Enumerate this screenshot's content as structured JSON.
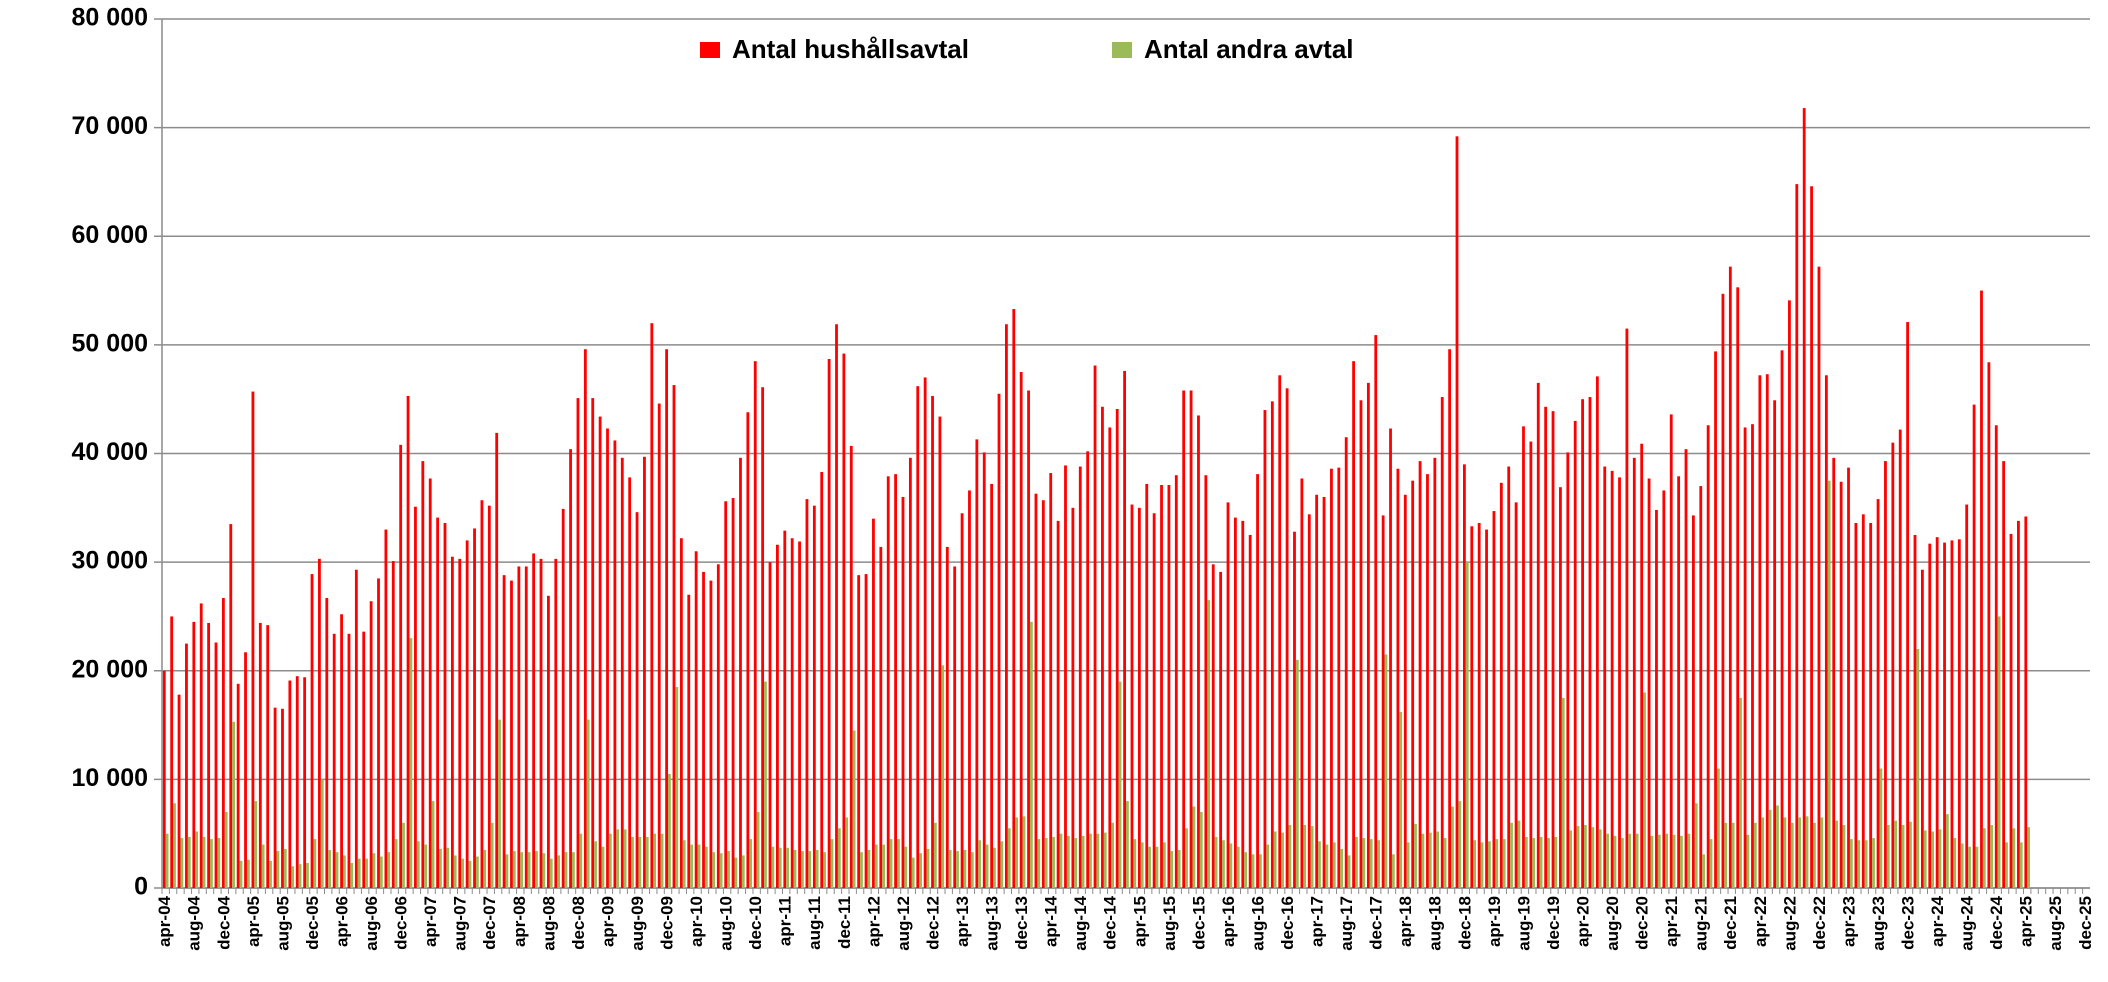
{
  "chart_data": {
    "type": "bar",
    "categories": [
      "apr-04",
      null,
      null,
      null,
      "aug-04",
      null,
      null,
      null,
      "dec-04",
      null,
      null,
      null,
      "apr-05",
      null,
      null,
      null,
      "aug-05",
      null,
      null,
      null,
      "dec-05",
      null,
      null,
      null,
      "apr-06",
      null,
      null,
      null,
      "aug-06",
      null,
      null,
      null,
      "dec-06",
      null,
      null,
      null,
      "apr-07",
      null,
      null,
      null,
      "aug-07",
      null,
      null,
      null,
      "dec-07",
      null,
      null,
      null,
      "apr-08",
      null,
      null,
      null,
      "aug-08",
      null,
      null,
      null,
      "dec-08",
      null,
      null,
      null,
      "apr-09",
      null,
      null,
      null,
      "aug-09",
      null,
      null,
      null,
      "dec-09",
      null,
      null,
      null,
      "apr-10",
      null,
      null,
      null,
      "aug-10",
      null,
      null,
      null,
      "dec-10",
      null,
      null,
      null,
      "apr-11",
      null,
      null,
      null,
      "aug-11",
      null,
      null,
      null,
      "dec-11",
      null,
      null,
      null,
      "apr-12",
      null,
      null,
      null,
      "aug-12",
      null,
      null,
      null,
      "dec-12",
      null,
      null,
      null,
      "apr-13",
      null,
      null,
      null,
      "aug-13",
      null,
      null,
      null,
      "dec-13",
      null,
      null,
      null,
      "apr-14",
      null,
      null,
      null,
      "aug-14",
      null,
      null,
      null,
      "dec-14",
      null,
      null,
      null,
      "apr-15",
      null,
      null,
      null,
      "aug-15",
      null,
      null,
      null,
      "dec-15",
      null,
      null,
      null,
      "apr-16",
      null,
      null,
      null,
      "aug-16",
      null,
      null,
      null,
      "dec-16",
      null,
      null,
      null,
      "apr-17",
      null,
      null,
      null,
      "aug-17",
      null,
      null,
      null,
      "dec-17",
      null,
      null,
      null,
      "apr-18",
      null,
      null,
      null,
      "aug-18",
      null,
      null,
      null,
      "dec-18",
      null,
      null,
      null,
      "apr-19",
      null,
      null,
      null,
      "aug-19",
      null,
      null,
      null,
      "dec-19",
      null,
      null,
      null,
      "apr-20",
      null,
      null,
      null,
      "aug-20",
      null,
      null,
      null,
      "dec-20",
      null,
      null,
      null,
      "apr-21",
      null,
      null,
      null,
      "aug-21",
      null,
      null,
      null,
      "dec-21",
      null,
      null,
      null,
      "apr-22",
      null,
      null,
      null,
      "aug-22",
      null,
      null,
      null,
      "dec-22",
      null,
      null,
      null,
      "apr-23",
      null,
      null,
      null,
      "aug-23",
      null,
      null,
      null,
      "dec-23",
      null,
      null,
      null,
      "apr-24",
      null,
      null,
      null,
      "aug-24",
      null,
      null,
      null,
      "dec-24",
      null,
      null,
      null,
      "apr-25",
      null,
      null,
      null,
      "aug-25",
      null,
      null,
      null,
      "dec-25"
    ],
    "series": [
      {
        "name": "Antal hushållsavtal",
        "color": "#ff0000",
        "values": [
          20000,
          25000,
          17800,
          22500,
          24500,
          26200,
          24400,
          22600,
          26700,
          33500,
          18800,
          21700,
          45700,
          24400,
          24200,
          16600,
          16500,
          19100,
          19500,
          19400,
          28900,
          30300,
          26700,
          23400,
          25200,
          23400,
          29300,
          23600,
          26400,
          28500,
          33000,
          30100,
          40800,
          45300,
          35100,
          39300,
          37700,
          34100,
          33600,
          30500,
          30300,
          32000,
          33100,
          35700,
          35200,
          41900,
          28800,
          28300,
          29600,
          29600,
          30800,
          30300,
          26900,
          30300,
          34900,
          40400,
          45100,
          49600,
          45100,
          43400,
          42300,
          41200,
          39600,
          37800,
          34600,
          39700,
          52000,
          44600,
          49600,
          46300,
          32200,
          27000,
          31000,
          29100,
          28300,
          29800,
          35600,
          35900,
          39600,
          43800,
          48500,
          46100,
          30000,
          31600,
          32900,
          32200,
          31900,
          35800,
          35200,
          38300,
          48700,
          51900,
          49200,
          40700,
          28800,
          28900,
          34000,
          31400,
          37900,
          38100,
          36000,
          39600,
          46200,
          47000,
          45300,
          43400,
          31400,
          29600,
          34500,
          36600,
          41300,
          40100,
          37200,
          45500,
          51900,
          53300,
          47500,
          45800,
          36300,
          35700,
          38200,
          33800,
          38900,
          35000,
          38800,
          40200,
          48100,
          44300,
          42400,
          44100,
          47600,
          35300,
          35000,
          37200,
          34500,
          37100,
          37100,
          38000,
          45800,
          45800,
          43500,
          38000,
          29800,
          29100,
          35500,
          34100,
          33800,
          32500,
          38100,
          44000,
          44800,
          47200,
          46000,
          32800,
          37700,
          34400,
          36200,
          36000,
          38600,
          38700,
          41500,
          48500,
          44900,
          46500,
          50900,
          34300,
          42300,
          38600,
          36200,
          37500,
          39300,
          38100,
          39600,
          45200,
          49600,
          69200,
          39000,
          33300,
          33600,
          33000,
          34700,
          37300,
          38800,
          35500,
          42500,
          41100,
          46500,
          44300,
          43900,
          36900,
          40100,
          43000,
          45000,
          45200,
          47100,
          38800,
          38400,
          37800,
          51500,
          39600,
          40900,
          37700,
          34800,
          36600,
          43600,
          37900,
          40400,
          34300,
          37000,
          42600,
          49400,
          54700,
          57200,
          55300,
          42400,
          42700,
          47200,
          47300,
          44900,
          49500,
          54100,
          64800,
          71800,
          64600,
          57200,
          47200,
          39600,
          37400,
          38700,
          33600,
          34400,
          33600,
          35800,
          39300,
          41000,
          42200,
          52100,
          32500,
          29300,
          31700,
          32300,
          31800,
          32000,
          32100,
          35300,
          44500,
          55000,
          48400,
          42600,
          39300,
          32600,
          33800,
          34200,
          null,
          null,
          null,
          null,
          null,
          null,
          null,
          null
        ]
      },
      {
        "name": "Antal andra avtal",
        "color": "#9bbb59",
        "values": [
          5000,
          7800,
          4600,
          4700,
          5200,
          4700,
          4500,
          4600,
          7000,
          15300,
          2500,
          2600,
          8000,
          4000,
          2500,
          3400,
          3600,
          2000,
          2200,
          2300,
          4500,
          10000,
          3500,
          3300,
          3000,
          2300,
          2700,
          2700,
          3200,
          2900,
          3300,
          4500,
          6000,
          23000,
          4300,
          4000,
          8000,
          3600,
          3700,
          3000,
          2700,
          2500,
          2900,
          3500,
          6000,
          15500,
          3100,
          3400,
          3300,
          3300,
          3400,
          3200,
          2700,
          3000,
          3300,
          3300,
          5000,
          15500,
          4300,
          3800,
          5000,
          5400,
          5400,
          4700,
          4700,
          4700,
          5000,
          5000,
          10500,
          18500,
          4400,
          4000,
          4000,
          3800,
          3300,
          3200,
          3400,
          2800,
          3000,
          4500,
          7000,
          19000,
          3800,
          3700,
          3700,
          3500,
          3400,
          3400,
          3500,
          3300,
          4500,
          5500,
          6500,
          14500,
          3300,
          3500,
          4000,
          4000,
          4500,
          4500,
          3800,
          2800,
          3200,
          3600,
          6000,
          20500,
          3500,
          3400,
          3500,
          3300,
          4400,
          4000,
          3700,
          4300,
          5500,
          6500,
          6600,
          24500,
          4500,
          4600,
          4700,
          5000,
          4800,
          4600,
          4800,
          5000,
          5000,
          5100,
          6000,
          19000,
          8000,
          4500,
          4200,
          3800,
          3800,
          4200,
          3400,
          3500,
          5500,
          7500,
          7000,
          26500,
          4700,
          4400,
          4100,
          3800,
          3300,
          3100,
          3100,
          4000,
          5200,
          5100,
          5800,
          21000,
          5800,
          5700,
          4300,
          4000,
          4200,
          3600,
          3000,
          4700,
          4600,
          4500,
          4400,
          21500,
          3100,
          16200,
          4200,
          5900,
          5000,
          5100,
          5200,
          4600,
          7500,
          8000,
          30000,
          4400,
          4200,
          4300,
          4500,
          4500,
          6000,
          6200,
          4700,
          4600,
          4700,
          4600,
          4700,
          17500,
          5300,
          5700,
          5800,
          5600,
          5400,
          5000,
          4800,
          4600,
          5000,
          5000,
          18000,
          4800,
          4900,
          5000,
          4900,
          4800,
          5000,
          7800,
          3100,
          4500,
          11000,
          6000,
          6000,
          17500,
          4900,
          6000,
          6500,
          7200,
          7600,
          6500,
          6000,
          6500,
          6600,
          6000,
          6500,
          37500,
          6200,
          5800,
          4500,
          4400,
          4400,
          4600,
          11000,
          5800,
          6200,
          5800,
          6100,
          22000,
          5300,
          5200,
          5400,
          6800,
          4600,
          4100,
          3800,
          3800,
          5500,
          5800,
          25000,
          4200,
          5500,
          4200,
          5600,
          null,
          null,
          null,
          null,
          null,
          null,
          null,
          null
        ]
      }
    ],
    "ylim": [
      0,
      80000
    ],
    "yticks": [
      0,
      {
        "value": 10000,
        "label": "10 000"
      },
      {
        "value": 20000,
        "label": "20 000"
      },
      {
        "value": 30000,
        "label": "30 000"
      },
      {
        "value": 40000,
        "label": "40 000"
      },
      {
        "value": 50000,
        "label": "50 000"
      },
      {
        "value": 60000,
        "label": "60 000"
      },
      {
        "value": 70000,
        "label": "70 000"
      },
      {
        "value": 80000,
        "label": "80 000"
      }
    ],
    "grid": true,
    "legend": "top"
  }
}
